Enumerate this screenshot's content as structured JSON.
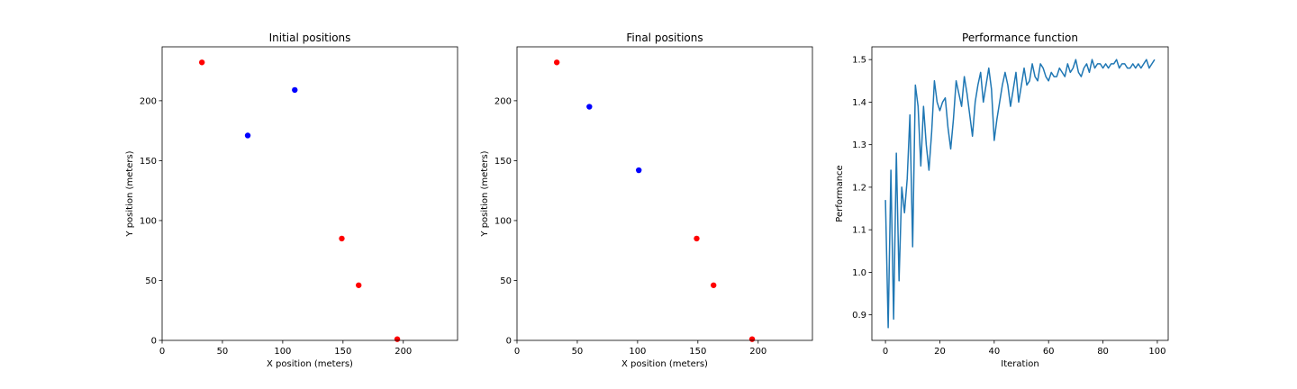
{
  "chart_data": [
    {
      "type": "scatter",
      "title": "Initial positions",
      "xlabel": "X position (meters)",
      "ylabel": "Y position (meters)",
      "xlim": [
        0,
        245
      ],
      "ylim": [
        0,
        245
      ],
      "xticks": [
        0,
        50,
        100,
        150,
        200
      ],
      "yticks": [
        0,
        50,
        100,
        150,
        200
      ],
      "grid": false,
      "series": [
        {
          "color": "#ff0000",
          "points": [
            [
              33,
              232
            ],
            [
              149,
              85
            ],
            [
              163,
              46
            ],
            [
              195,
              1
            ]
          ]
        },
        {
          "color": "#0000ff",
          "points": [
            [
              71,
              171
            ],
            [
              110,
              209
            ]
          ]
        }
      ]
    },
    {
      "type": "scatter",
      "title": "Final positions",
      "xlabel": "X position (meters)",
      "ylabel": "Y position (meters)",
      "xlim": [
        0,
        245
      ],
      "ylim": [
        0,
        245
      ],
      "xticks": [
        0,
        50,
        100,
        150,
        200
      ],
      "yticks": [
        0,
        50,
        100,
        150,
        200
      ],
      "grid": false,
      "series": [
        {
          "color": "#ff0000",
          "points": [
            [
              33,
              232
            ],
            [
              149,
              85
            ],
            [
              163,
              46
            ],
            [
              195,
              1
            ]
          ]
        },
        {
          "color": "#0000ff",
          "points": [
            [
              60,
              195
            ],
            [
              101,
              142
            ]
          ]
        }
      ]
    },
    {
      "type": "line",
      "title": "Performance function",
      "xlabel": "Iteration",
      "ylabel": "Performance",
      "xlim": [
        -5,
        104
      ],
      "ylim": [
        0.84,
        1.53
      ],
      "xticks": [
        0,
        20,
        40,
        60,
        80,
        100
      ],
      "yticks": [
        0.9,
        1.0,
        1.1,
        1.2,
        1.3,
        1.4,
        1.5
      ],
      "grid": false,
      "series": [
        {
          "color": "#1f77b4",
          "x": [
            0,
            1,
            2,
            3,
            4,
            5,
            6,
            7,
            8,
            9,
            10,
            11,
            12,
            13,
            14,
            15,
            16,
            17,
            18,
            19,
            20,
            21,
            22,
            23,
            24,
            25,
            26,
            27,
            28,
            29,
            30,
            31,
            32,
            33,
            34,
            35,
            36,
            37,
            38,
            39,
            40,
            41,
            42,
            43,
            44,
            45,
            46,
            47,
            48,
            49,
            50,
            51,
            52,
            53,
            54,
            55,
            56,
            57,
            58,
            59,
            60,
            61,
            62,
            63,
            64,
            65,
            66,
            67,
            68,
            69,
            70,
            71,
            72,
            73,
            74,
            75,
            76,
            77,
            78,
            79,
            80,
            81,
            82,
            83,
            84,
            85,
            86,
            87,
            88,
            89,
            90,
            91,
            92,
            93,
            94,
            95,
            96,
            97,
            98,
            99
          ],
          "y": [
            1.17,
            0.87,
            1.24,
            0.89,
            1.28,
            0.98,
            1.2,
            1.14,
            1.22,
            1.37,
            1.06,
            1.44,
            1.39,
            1.25,
            1.39,
            1.3,
            1.24,
            1.33,
            1.45,
            1.4,
            1.38,
            1.4,
            1.41,
            1.34,
            1.29,
            1.36,
            1.45,
            1.42,
            1.39,
            1.46,
            1.42,
            1.37,
            1.32,
            1.4,
            1.44,
            1.47,
            1.4,
            1.44,
            1.48,
            1.43,
            1.31,
            1.36,
            1.4,
            1.44,
            1.47,
            1.44,
            1.39,
            1.43,
            1.47,
            1.4,
            1.44,
            1.48,
            1.44,
            1.45,
            1.49,
            1.46,
            1.45,
            1.49,
            1.48,
            1.46,
            1.45,
            1.47,
            1.46,
            1.46,
            1.48,
            1.47,
            1.46,
            1.49,
            1.47,
            1.48,
            1.5,
            1.47,
            1.46,
            1.48,
            1.49,
            1.47,
            1.5,
            1.48,
            1.49,
            1.49,
            1.48,
            1.49,
            1.48,
            1.49,
            1.49,
            1.5,
            1.48,
            1.49,
            1.49,
            1.48,
            1.48,
            1.49,
            1.48,
            1.49,
            1.48,
            1.49,
            1.5,
            1.48,
            1.49,
            1.5
          ]
        }
      ]
    }
  ]
}
